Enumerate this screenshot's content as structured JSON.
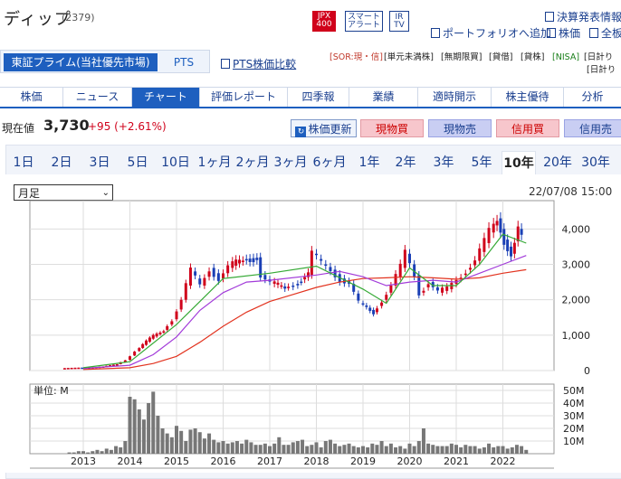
{
  "stock": {
    "name": "ディップ",
    "code": "(2379)"
  },
  "badges": {
    "jpx": "JPX\n400",
    "jpx_top": "JPX",
    "jpx_bottom": "400",
    "smart_top": "スマート",
    "smart_bottom": "アラート",
    "ir_top": "IR",
    "ir_bottom": "TV"
  },
  "top_links": {
    "earnings": "決算発表情報",
    "portfolio": "ポートフォリオへ追加",
    "news_alert": "株価",
    "full": "全板"
  },
  "market_tabs": {
    "main": "東証プライム(当社優先市場)",
    "pts": "PTS"
  },
  "pts_compare": "PTS株価比較",
  "tags": [
    "[SOR:現・信]",
    "[単元未満株]",
    "[無期限買]",
    "[貸借]",
    "[貸株]",
    "[NISA]",
    "[日計り",
    "[日計り"
  ],
  "nav": [
    "株価",
    "ニュース",
    "チャート",
    "評価レポート",
    "四季報",
    "業績",
    "適時開示",
    "株主優待",
    "分析"
  ],
  "price": {
    "label": "現在値",
    "value": "3,730",
    "change": "+95 (+2.61%)"
  },
  "actions": {
    "refresh": "株価更新",
    "cash_buy": "現物買",
    "cash_sell": "現物売",
    "margin_buy": "信用買",
    "margin_sell": "信用売"
  },
  "ranges": [
    "1日",
    "2日",
    "3日",
    "5日",
    "10日",
    "1ヶ月",
    "2ヶ月",
    "3ヶ月",
    "6ヶ月",
    "1年",
    "2年",
    "3年",
    "5年",
    "10年",
    "20年",
    "30年"
  ],
  "active_range": "10年",
  "period_select": "月足",
  "chart_timestamp": "22/07/08 15:00",
  "colors": {
    "accent": "#1e5fbf",
    "up": "#d0021b",
    "down": "#1a3fb5",
    "ma_short": "#35a935",
    "ma_mid": "#a23bd9",
    "ma_long": "#e2331f"
  },
  "chart_data": [
    {
      "type": "candlestick",
      "period": "monthly",
      "x_ticks": [
        "2013",
        "2014",
        "2015",
        "2016",
        "2017",
        "2018",
        "2019",
        "2020",
        "2021",
        "2022"
      ],
      "y_ticks": [
        "0",
        "1,000",
        "2,000",
        "3,000",
        "4,000"
      ],
      "ylim": [
        0,
        4800
      ],
      "grid": true,
      "close_series": [
        [
          2012.6,
          60
        ],
        [
          2012.9,
          80
        ],
        [
          2013.2,
          90
        ],
        [
          2013.5,
          110
        ],
        [
          2013.8,
          180
        ],
        [
          2014.0,
          300
        ],
        [
          2014.2,
          550
        ],
        [
          2014.5,
          900
        ],
        [
          2014.8,
          1150
        ],
        [
          2015.0,
          1450
        ],
        [
          2015.2,
          2000
        ],
        [
          2015.4,
          2800
        ],
        [
          2015.6,
          2400
        ],
        [
          2015.8,
          2900
        ],
        [
          2016.0,
          2600
        ],
        [
          2016.2,
          2900
        ],
        [
          2016.5,
          3150
        ],
        [
          2016.8,
          3200
        ],
        [
          2016.9,
          2700
        ],
        [
          2017.1,
          2450
        ],
        [
          2017.4,
          2350
        ],
        [
          2017.6,
          2450
        ],
        [
          2017.9,
          2700
        ],
        [
          2018.0,
          3300
        ],
        [
          2018.2,
          3000
        ],
        [
          2018.4,
          2850
        ],
        [
          2018.6,
          2600
        ],
        [
          2018.8,
          2450
        ],
        [
          2019.0,
          1900
        ],
        [
          2019.3,
          1650
        ],
        [
          2019.5,
          2000
        ],
        [
          2019.7,
          2400
        ],
        [
          2019.9,
          2900
        ],
        [
          2020.0,
          3300
        ],
        [
          2020.2,
          2700
        ],
        [
          2020.3,
          2200
        ],
        [
          2020.5,
          2500
        ],
        [
          2020.7,
          2200
        ],
        [
          2020.9,
          2300
        ],
        [
          2021.1,
          2600
        ],
        [
          2021.3,
          2850
        ],
        [
          2021.5,
          3100
        ],
        [
          2021.7,
          3600
        ],
        [
          2021.8,
          3900
        ],
        [
          2021.95,
          4300
        ],
        [
          2022.1,
          3700
        ],
        [
          2022.25,
          3300
        ],
        [
          2022.4,
          4000
        ],
        [
          2022.5,
          3730
        ]
      ],
      "ma_short": [
        [
          2013.0,
          80
        ],
        [
          2014.0,
          250
        ],
        [
          2015.0,
          1300
        ],
        [
          2016.0,
          2600
        ],
        [
          2017.0,
          2750
        ],
        [
          2018.0,
          2950
        ],
        [
          2019.0,
          2300
        ],
        [
          2019.5,
          1900
        ],
        [
          2020.0,
          2900
        ],
        [
          2020.5,
          2400
        ],
        [
          2021.0,
          2400
        ],
        [
          2021.5,
          3000
        ],
        [
          2022.0,
          3850
        ],
        [
          2022.5,
          3600
        ]
      ],
      "ma_mid": [
        [
          2013.0,
          60
        ],
        [
          2014.0,
          150
        ],
        [
          2014.5,
          450
        ],
        [
          2015.0,
          950
        ],
        [
          2015.5,
          1700
        ],
        [
          2016.0,
          2200
        ],
        [
          2016.5,
          2500
        ],
        [
          2017.0,
          2550
        ],
        [
          2018.0,
          2700
        ],
        [
          2018.5,
          2800
        ],
        [
          2019.0,
          2650
        ],
        [
          2019.5,
          2400
        ],
        [
          2020.0,
          2500
        ],
        [
          2020.5,
          2550
        ],
        [
          2021.0,
          2500
        ],
        [
          2021.5,
          2750
        ],
        [
          2022.0,
          3000
        ],
        [
          2022.5,
          3250
        ]
      ],
      "ma_long": [
        [
          2013.0,
          30
        ],
        [
          2014.0,
          80
        ],
        [
          2014.5,
          200
        ],
        [
          2015.0,
          400
        ],
        [
          2015.5,
          800
        ],
        [
          2016.0,
          1250
        ],
        [
          2016.5,
          1650
        ],
        [
          2017.0,
          1950
        ],
        [
          2017.5,
          2150
        ],
        [
          2018.0,
          2350
        ],
        [
          2018.5,
          2500
        ],
        [
          2019.0,
          2600
        ],
        [
          2019.5,
          2620
        ],
        [
          2020.0,
          2650
        ],
        [
          2020.5,
          2620
        ],
        [
          2021.0,
          2580
        ],
        [
          2021.5,
          2620
        ],
        [
          2022.0,
          2750
        ],
        [
          2022.5,
          2850
        ]
      ]
    },
    {
      "type": "bar",
      "title": "単位: M",
      "y_ticks": [
        "10M",
        "20M",
        "30M",
        "40M",
        "50M"
      ],
      "ylim": [
        0,
        55
      ],
      "grid": true,
      "volume": [
        [
          2012.7,
          1
        ],
        [
          2012.8,
          1
        ],
        [
          2012.9,
          2
        ],
        [
          2013.0,
          2
        ],
        [
          2013.1,
          1
        ],
        [
          2013.2,
          2
        ],
        [
          2013.3,
          3
        ],
        [
          2013.4,
          2
        ],
        [
          2013.5,
          4
        ],
        [
          2013.6,
          3
        ],
        [
          2013.7,
          6
        ],
        [
          2013.8,
          5
        ],
        [
          2013.9,
          10
        ],
        [
          2014.0,
          45
        ],
        [
          2014.1,
          43
        ],
        [
          2014.2,
          35
        ],
        [
          2014.3,
          27
        ],
        [
          2014.4,
          40
        ],
        [
          2014.5,
          49
        ],
        [
          2014.6,
          30
        ],
        [
          2014.7,
          20
        ],
        [
          2014.8,
          16
        ],
        [
          2014.9,
          13
        ],
        [
          2015.0,
          22
        ],
        [
          2015.1,
          18
        ],
        [
          2015.2,
          10
        ],
        [
          2015.3,
          19
        ],
        [
          2015.4,
          20
        ],
        [
          2015.5,
          17
        ],
        [
          2015.6,
          12
        ],
        [
          2015.7,
          16
        ],
        [
          2015.8,
          11
        ],
        [
          2015.9,
          9
        ],
        [
          2016.0,
          10
        ],
        [
          2016.1,
          8
        ],
        [
          2016.2,
          9
        ],
        [
          2016.3,
          10
        ],
        [
          2016.4,
          8
        ],
        [
          2016.5,
          11
        ],
        [
          2016.6,
          9
        ],
        [
          2016.7,
          7
        ],
        [
          2016.8,
          7
        ],
        [
          2016.9,
          8
        ],
        [
          2017.0,
          6
        ],
        [
          2017.1,
          8
        ],
        [
          2017.2,
          13
        ],
        [
          2017.3,
          7
        ],
        [
          2017.4,
          7
        ],
        [
          2017.5,
          9
        ],
        [
          2017.6,
          10
        ],
        [
          2017.7,
          11
        ],
        [
          2017.8,
          6
        ],
        [
          2017.9,
          7
        ],
        [
          2018.0,
          9
        ],
        [
          2018.1,
          5
        ],
        [
          2018.2,
          10
        ],
        [
          2018.3,
          11
        ],
        [
          2018.4,
          8
        ],
        [
          2018.5,
          6
        ],
        [
          2018.6,
          7
        ],
        [
          2018.7,
          8
        ],
        [
          2018.8,
          6
        ],
        [
          2018.9,
          5
        ],
        [
          2019.0,
          6
        ],
        [
          2019.1,
          5
        ],
        [
          2019.2,
          8
        ],
        [
          2019.3,
          7
        ],
        [
          2019.4,
          10
        ],
        [
          2019.5,
          6
        ],
        [
          2019.6,
          8
        ],
        [
          2019.7,
          5
        ],
        [
          2019.8,
          6
        ],
        [
          2019.9,
          4
        ],
        [
          2020.0,
          8
        ],
        [
          2020.1,
          6
        ],
        [
          2020.2,
          10
        ],
        [
          2020.3,
          20
        ],
        [
          2020.4,
          8
        ],
        [
          2020.5,
          7
        ],
        [
          2020.6,
          6
        ],
        [
          2020.7,
          6
        ],
        [
          2020.8,
          6
        ],
        [
          2020.9,
          8
        ],
        [
          2021.0,
          7
        ],
        [
          2021.1,
          5
        ],
        [
          2021.2,
          7
        ],
        [
          2021.3,
          6
        ],
        [
          2021.4,
          6
        ],
        [
          2021.5,
          4
        ],
        [
          2021.6,
          5
        ],
        [
          2021.7,
          8
        ],
        [
          2021.8,
          5
        ],
        [
          2021.9,
          6
        ],
        [
          2022.0,
          6
        ],
        [
          2022.1,
          4
        ],
        [
          2022.2,
          5
        ],
        [
          2022.3,
          7
        ],
        [
          2022.4,
          6
        ],
        [
          2022.5,
          3
        ]
      ]
    }
  ]
}
